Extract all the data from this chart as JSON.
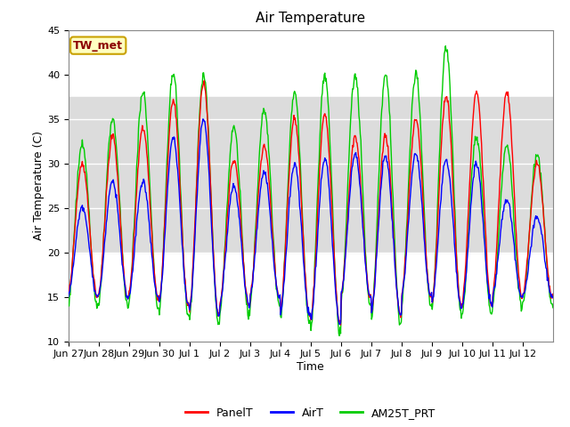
{
  "title": "Air Temperature",
  "xlabel": "Time",
  "ylabel": "Air Temperature (C)",
  "ylim": [
    10,
    45
  ],
  "xlim_start": 0,
  "xlim_end": 16,
  "x_tick_labels": [
    "Jun 27",
    "Jun 28",
    "Jun 29",
    "Jun 30",
    "Jul 1",
    "Jul 2",
    "Jul 3",
    "Jul 4",
    "Jul 5",
    "Jul 6",
    "Jul 7",
    "Jul 8",
    "Jul 9",
    "Jul 10",
    "Jul 11",
    "Jul 12"
  ],
  "annotation_text": "TW_met",
  "annotation_color": "#8B0000",
  "annotation_bg": "#FFFFC0",
  "annotation_border": "#C8A000",
  "shaded_band_low": 20,
  "shaded_band_high": 37.5,
  "shaded_color": "#DCDCDC",
  "panel_t_color": "#FF0000",
  "air_t_color": "#0000FF",
  "am25t_prt_color": "#00CC00",
  "legend_labels": [
    "PanelT",
    "AirT",
    "AM25T_PRT"
  ],
  "background_color": "#FFFFFF",
  "title_fontsize": 11,
  "axis_fontsize": 9,
  "tick_fontsize": 8,
  "panel_peaks": [
    30,
    33,
    34,
    37,
    39,
    30.5,
    32,
    35,
    35.5,
    33,
    33,
    35,
    37.5,
    38,
    38,
    30
  ],
  "air_peaks": [
    25,
    28,
    28,
    33,
    35,
    27.5,
    29,
    30,
    30.5,
    31,
    31,
    31,
    30.5,
    30,
    26,
    24
  ],
  "am25t_peaks": [
    32,
    35,
    38,
    40,
    40,
    34,
    36,
    38,
    40,
    40,
    40,
    40,
    43,
    33,
    32,
    31
  ],
  "day_mins": [
    15,
    15,
    15,
    14,
    13,
    14,
    15,
    13,
    12,
    15,
    13,
    15,
    14,
    14,
    15,
    15
  ]
}
